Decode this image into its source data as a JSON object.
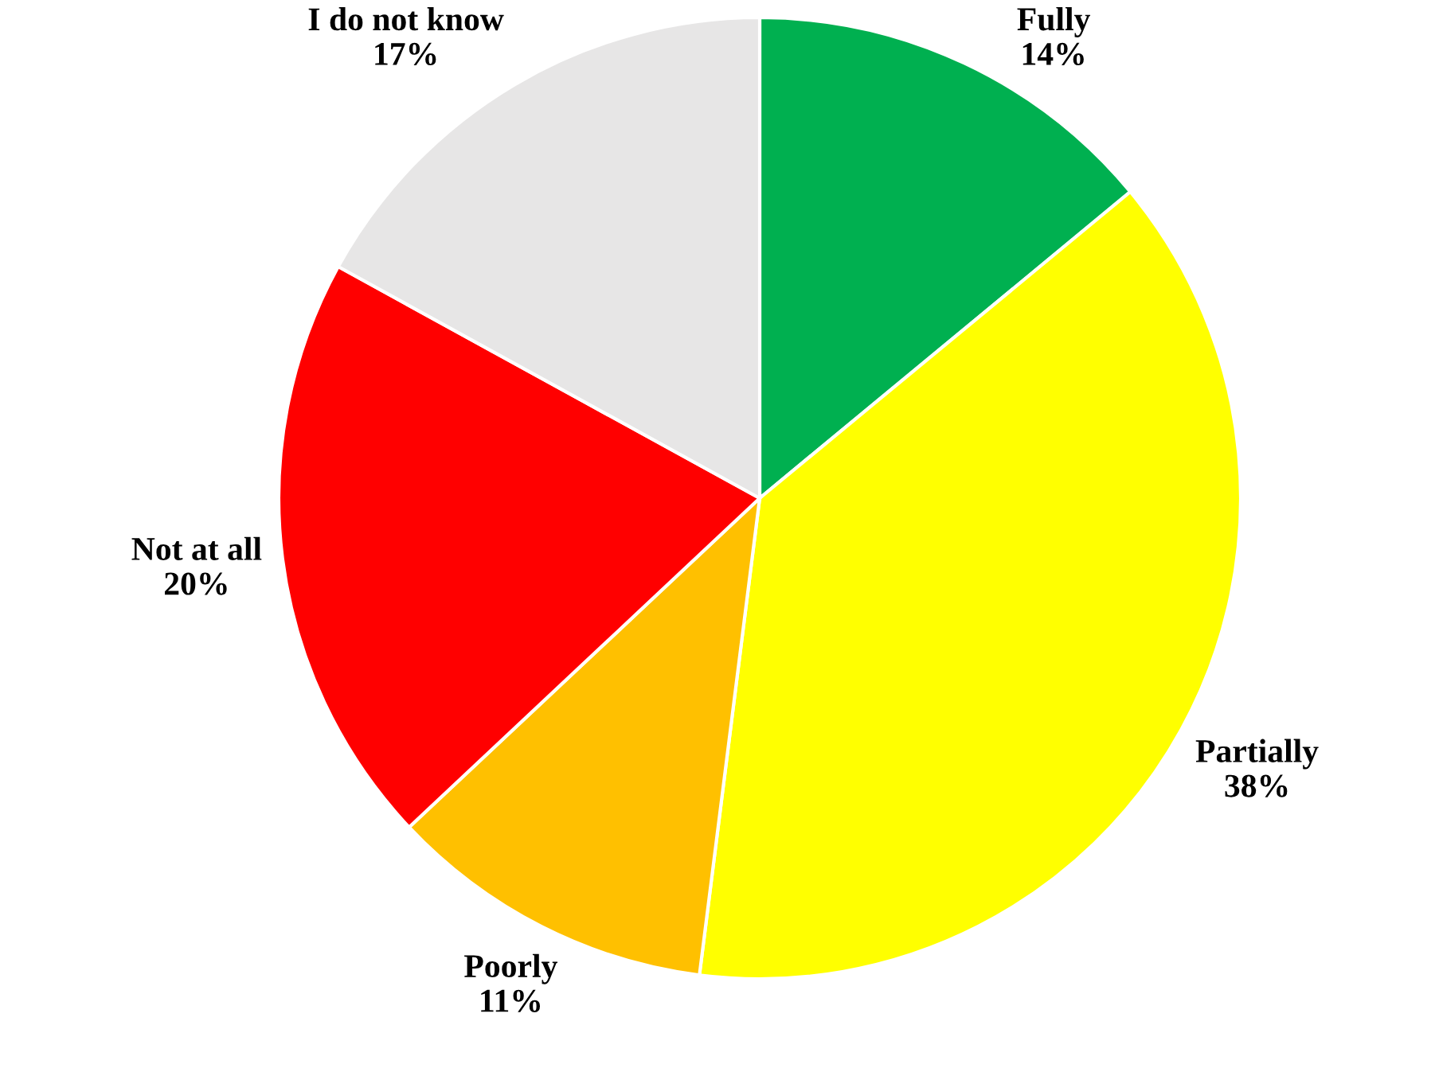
{
  "chart_data": {
    "type": "pie",
    "categories": [
      "Fully",
      "Partially",
      "Poorly",
      "Not at all",
      "I do not know"
    ],
    "values": [
      14,
      38,
      11,
      20,
      17
    ],
    "value_labels": [
      "14%",
      "38%",
      "11%",
      "20%",
      "17%"
    ],
    "colors": [
      "#00b050",
      "#ffff00",
      "#ffc000",
      "#ff0000",
      "#e7e6e6"
    ]
  }
}
